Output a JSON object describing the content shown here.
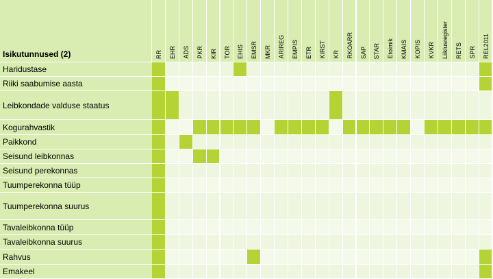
{
  "table": {
    "title": "Isikutunnused (2)",
    "columns": [
      "RR",
      "EHR",
      "ADS",
      "PKR",
      "KIR",
      "TOR",
      "EHIS",
      "EMSR",
      "MKR",
      "ARIREG",
      "EMPIS",
      "ETR",
      "KIRST",
      "KR",
      "RKOARR",
      "SAP",
      "STAR",
      "Etoimik",
      "KMAIS",
      "KOPIS",
      "KVKR",
      "Liiklusregister",
      "RETS",
      "SPR",
      "REL2011"
    ],
    "rows": [
      {
        "label": "Haridustase",
        "marks": [
          "RR",
          "EHIS",
          "REL2011"
        ]
      },
      {
        "label": "Riiki saabumise aasta",
        "marks": [
          "RR",
          "REL2011"
        ]
      },
      {
        "label": "Leibkondade valduse staatus",
        "marks": [
          "RR",
          "EHR",
          "KR"
        ]
      },
      {
        "label": "Kogurahvastik",
        "marks": [
          "RR",
          "PKR",
          "KIR",
          "TOR",
          "EHIS",
          "EMSR",
          "ARIREG",
          "EMPIS",
          "ETR",
          "KIRST",
          "RKOARR",
          "SAP",
          "STAR",
          "Etoimik",
          "KMAIS",
          "KVKR",
          "Liiklusregister",
          "RETS",
          "SPR",
          "REL2011"
        ]
      },
      {
        "label": "Paikkond",
        "marks": [
          "RR",
          "ADS"
        ]
      },
      {
        "label": "Seisund leibkonnas",
        "marks": [
          "RR",
          "PKR",
          "KIR"
        ]
      },
      {
        "label": "Seisund perekonnas",
        "marks": [
          "RR"
        ]
      },
      {
        "label": "Tuumperekonna tüüp",
        "marks": [
          "RR"
        ]
      },
      {
        "label": "Tuumperekonna suurus",
        "marks": [
          "RR"
        ]
      },
      {
        "label": "Tavaleibkonna tüüp",
        "marks": [
          "RR"
        ]
      },
      {
        "label": "Tavaleibkonna suurus",
        "marks": [
          "RR"
        ]
      },
      {
        "label": "Rahvus",
        "marks": [
          "RR",
          "EMSR",
          "REL2011"
        ]
      },
      {
        "label": "Emakeel",
        "marks": [
          "RR",
          "REL2011"
        ]
      }
    ]
  },
  "colors": {
    "header_bg": "#d9ecb1",
    "cell_bg": "#eef6e0",
    "mark": "#b5d334"
  }
}
